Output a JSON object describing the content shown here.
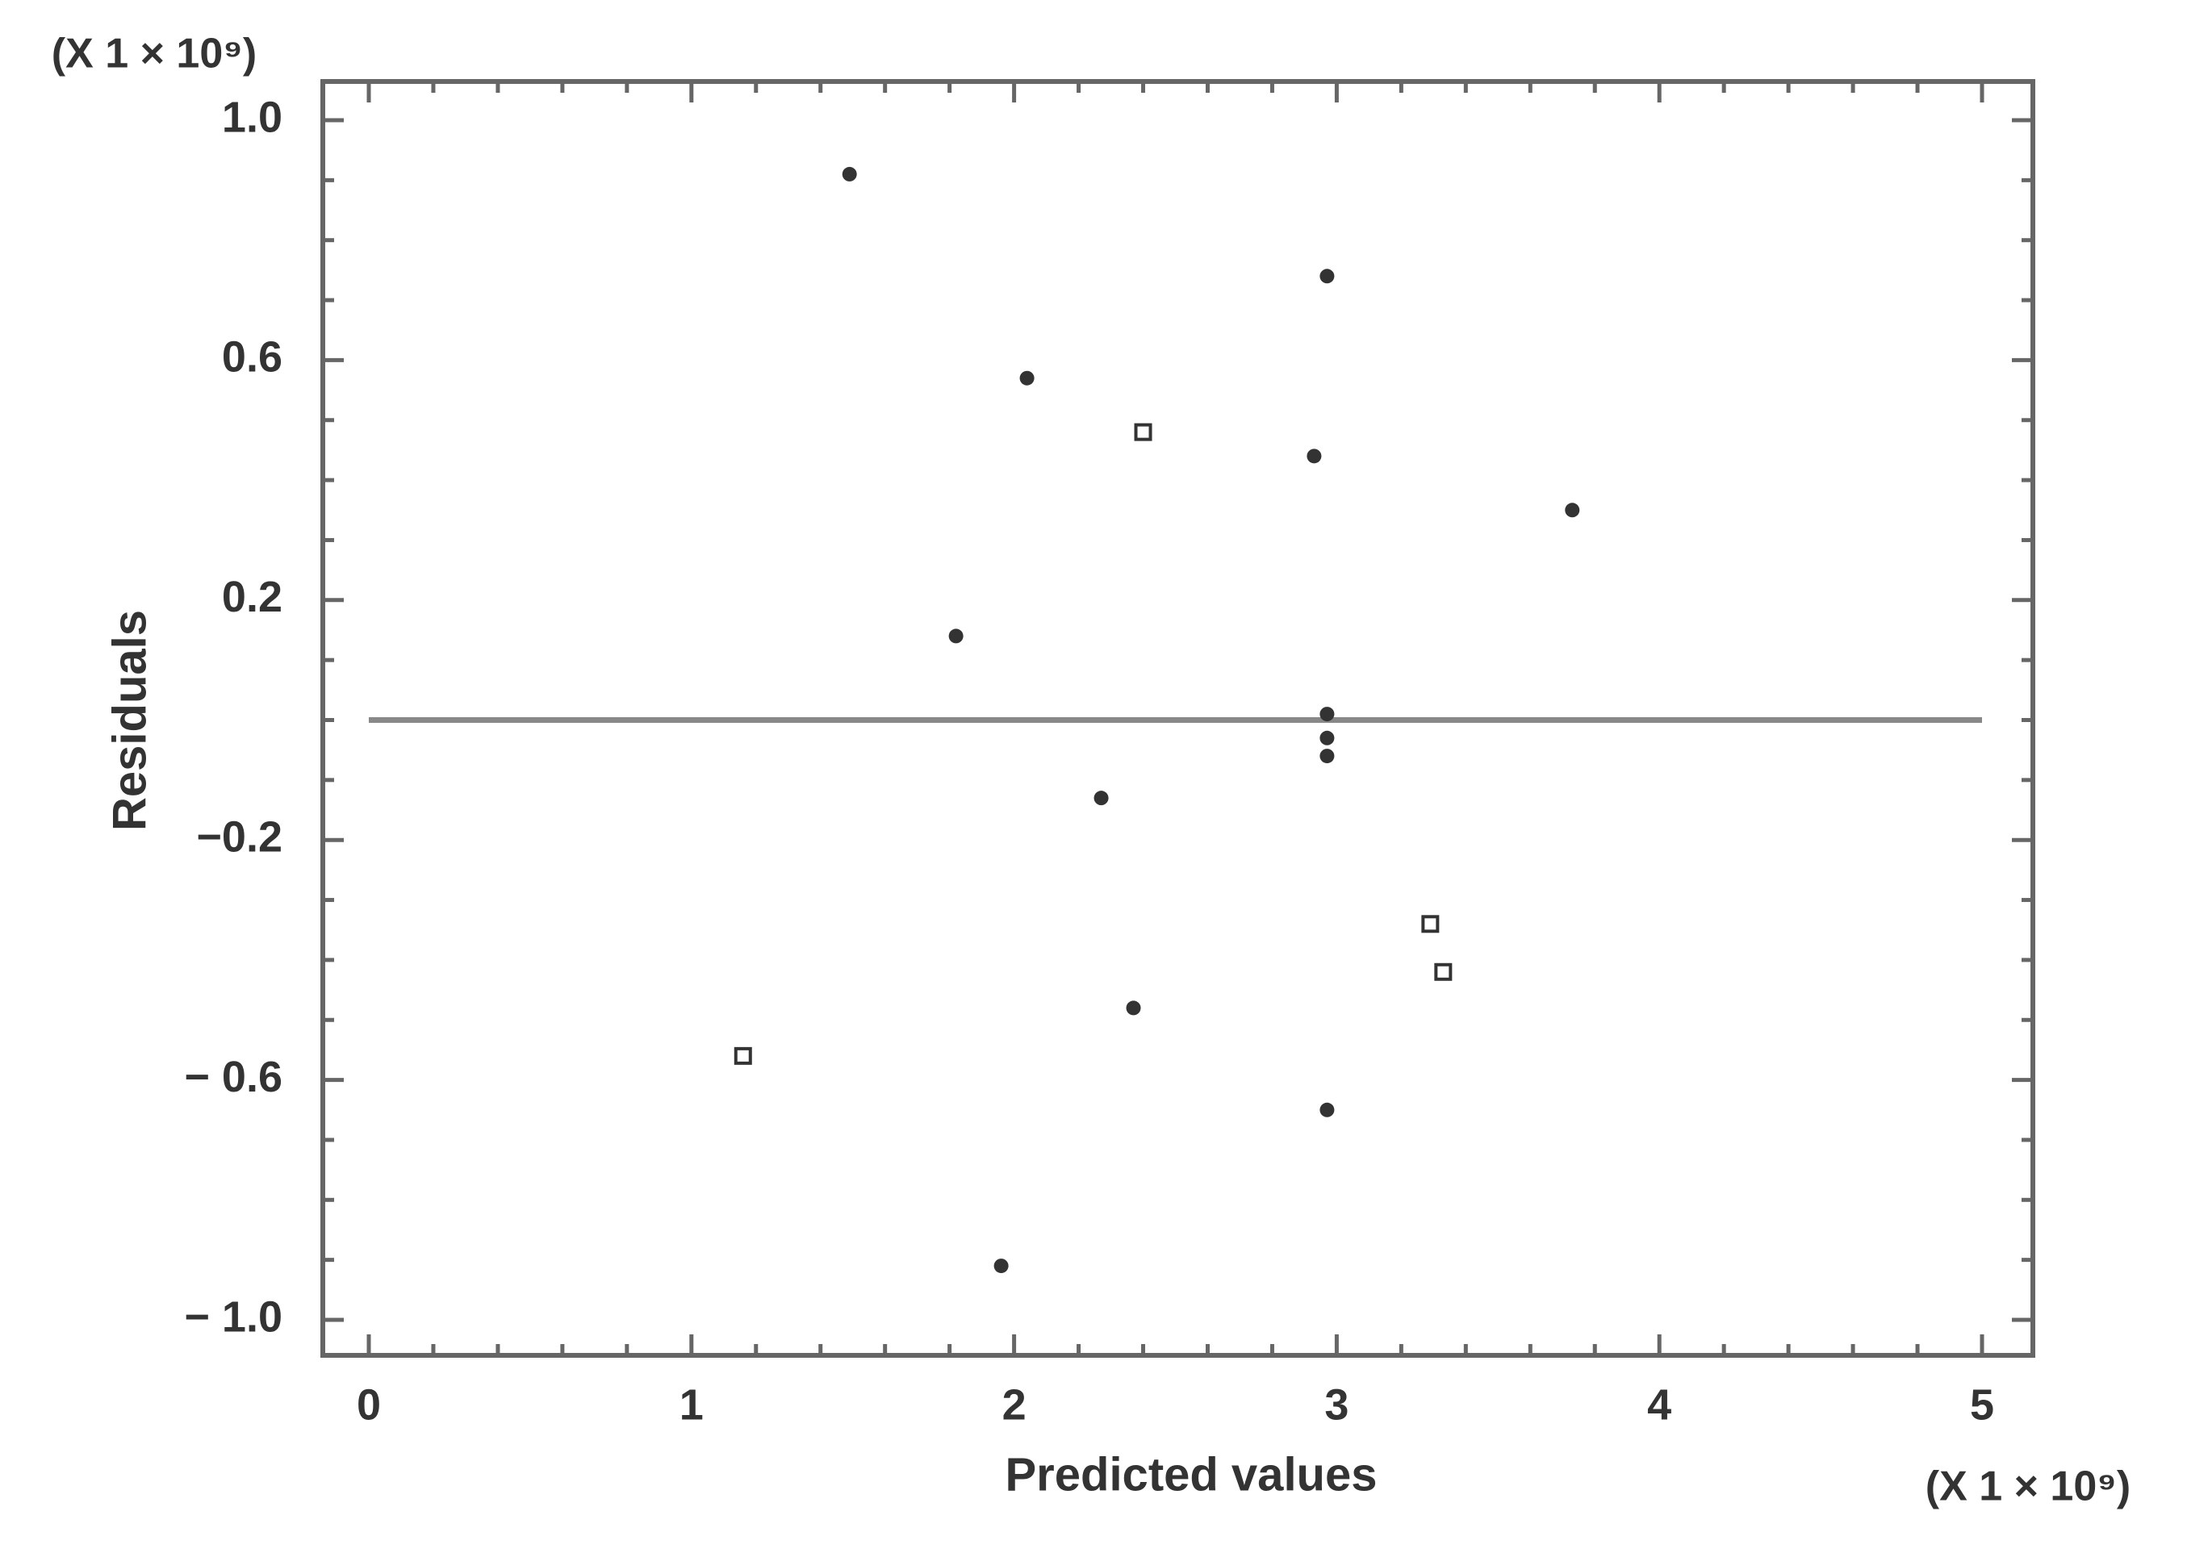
{
  "chart_data": {
    "type": "scatter",
    "xlabel": "Predicted values",
    "ylabel": "Residuals",
    "x_multiplier": "(X 1 × 10⁹)",
    "y_multiplier": "(X 1 × 10⁹)",
    "xlim": [
      0,
      5
    ],
    "ylim": [
      -1,
      1
    ],
    "xticks": [
      0,
      1,
      2,
      3,
      4,
      5
    ],
    "yticks": [
      {
        "value": 1,
        "label": "1.0"
      },
      {
        "value": 0.6,
        "label": "0.6"
      },
      {
        "value": 0.2,
        "label": "0.2"
      },
      {
        "value": -0.2,
        "label": "−0.2"
      },
      {
        "value": -0.6,
        "label": "− 0.6"
      },
      {
        "value": -1,
        "label": "− 1.0"
      }
    ],
    "xminorticks": [
      0.2,
      0.4,
      0.6,
      0.8,
      1.2,
      1.4,
      1.6,
      1.8,
      2.2,
      2.4,
      2.6,
      2.8,
      3.2,
      3.4,
      3.6,
      3.8,
      4.2,
      4.4,
      4.6,
      4.8
    ],
    "yminorticks": [
      0.9,
      0.8,
      0.7,
      0.5,
      0.4,
      0.3,
      0.1,
      0,
      -0.1,
      -0.3,
      -0.4,
      -0.5,
      -0.7,
      -0.8,
      -0.9
    ],
    "hline": 0,
    "series": [
      {
        "marker": "dot",
        "color": "#333333",
        "x": [
          1.49,
          2.97,
          2.04,
          2.93,
          3.73,
          1.82,
          2.97,
          2.97,
          2.97,
          2.27,
          2.37,
          2.97,
          1.96
        ],
        "values": [
          0.91,
          0.74,
          0.57,
          0.44,
          0.35,
          0.14,
          0.01,
          -0.03,
          -0.06,
          -0.13,
          -0.48,
          -0.65,
          -0.91
        ]
      },
      {
        "marker": "square",
        "color": "#333333",
        "x": [
          2.4,
          3.29,
          3.33,
          1.16
        ],
        "values": [
          0.48,
          -0.34,
          -0.42,
          -0.56
        ]
      }
    ]
  }
}
